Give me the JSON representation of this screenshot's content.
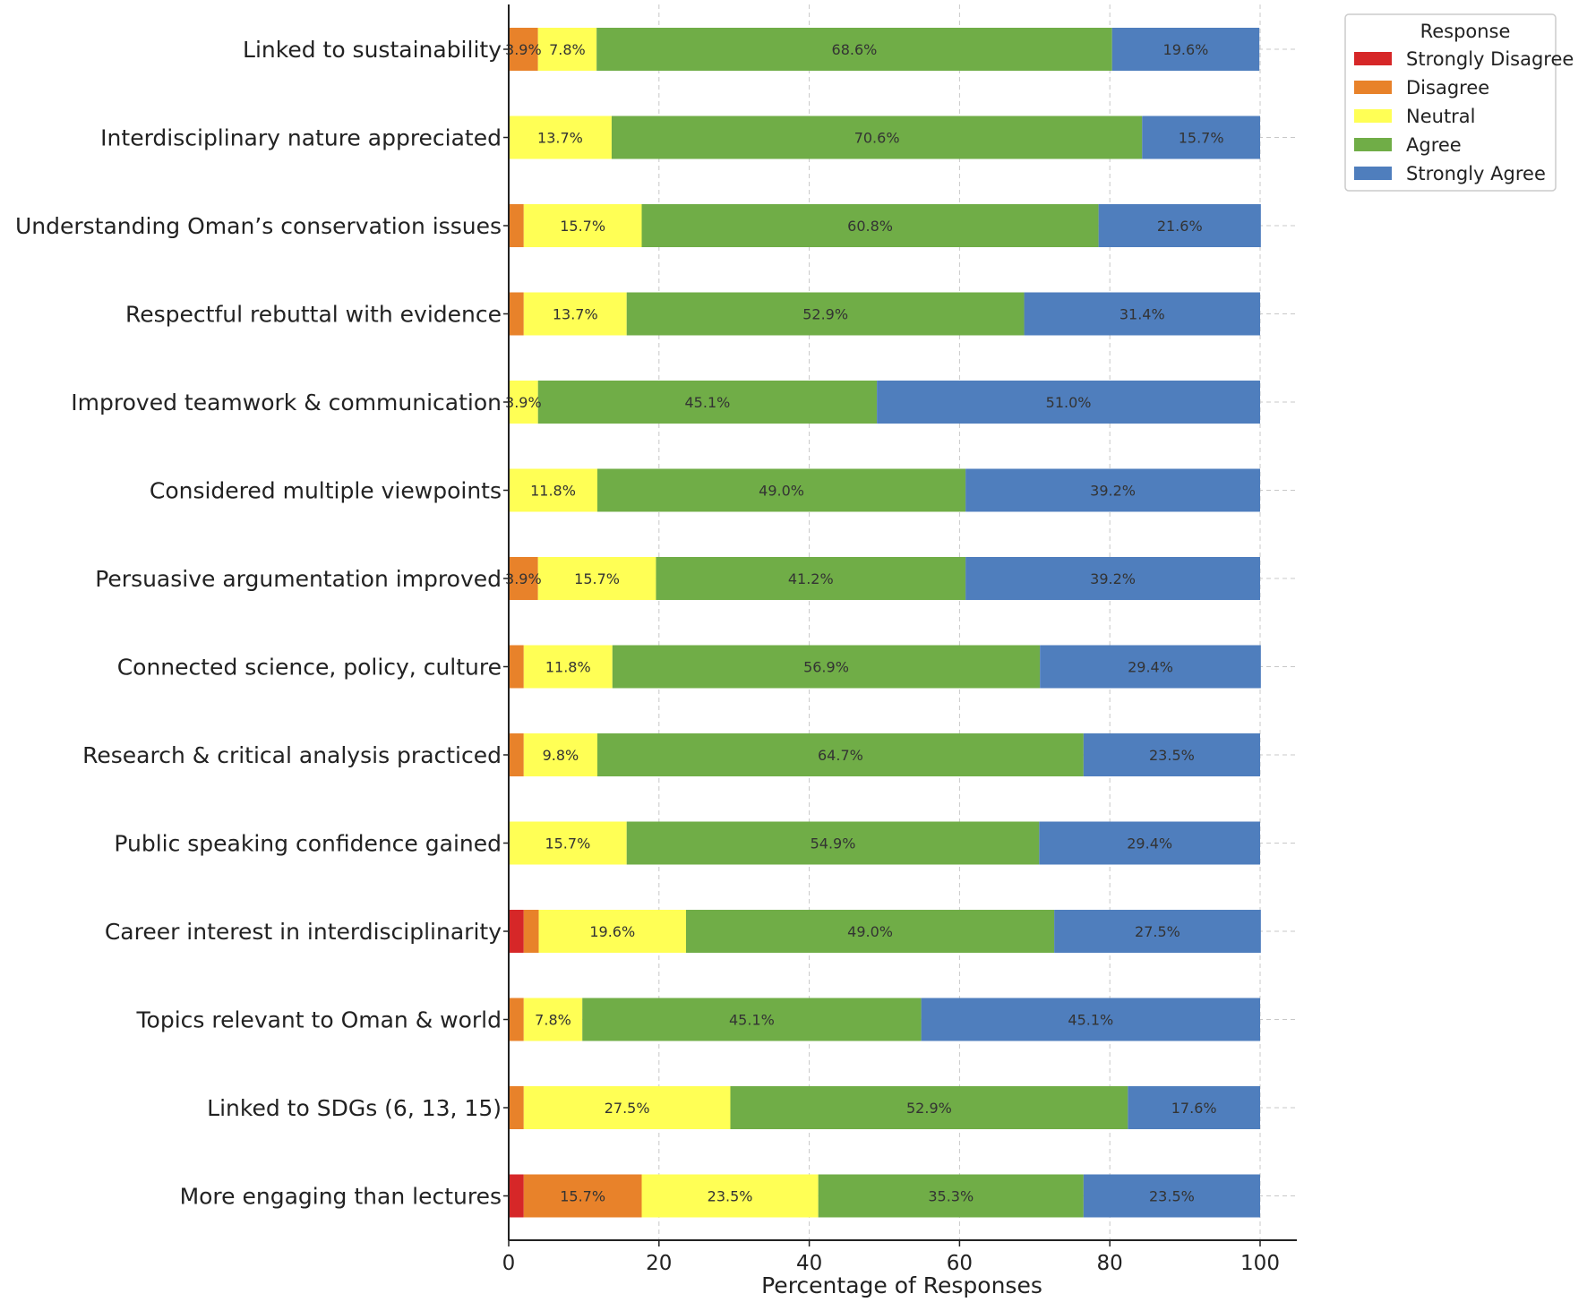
{
  "chart_data": {
    "type": "bar",
    "orientation": "horizontal",
    "stacked": true,
    "title": "",
    "xlabel": "Percentage of Responses",
    "ylabel": "",
    "xlim": [
      0,
      100
    ],
    "xticks": [
      0,
      20,
      40,
      60,
      80,
      100
    ],
    "grid": true,
    "legend": {
      "title": "Response",
      "position": "top-right outside"
    },
    "categories": [
      "Linked to sustainability",
      "Interdisciplinary nature appreciated",
      "Understanding Oman’s conservation issues",
      "Respectful rebuttal with evidence",
      "Improved teamwork & communication",
      "Considered multiple viewpoints",
      "Persuasive argumentation improved",
      "Connected science, policy, culture",
      "Research & critical analysis practiced",
      "Public speaking confidence gained",
      "Career interest in interdisciplinarity",
      "Topics relevant to Oman & world",
      "Linked to SDGs (6, 13, 15)",
      "More engaging than lectures"
    ],
    "series": [
      {
        "name": "Strongly Disagree",
        "color": "#d62728",
        "values": [
          0,
          0,
          0,
          0,
          0,
          0,
          0,
          0,
          0,
          0,
          2.0,
          0,
          0,
          2.0
        ]
      },
      {
        "name": "Disagree",
        "color": "#e8822a",
        "values": [
          3.9,
          0,
          2.0,
          2.0,
          0,
          0,
          3.9,
          2.0,
          2.0,
          0,
          2.0,
          2.0,
          2.0,
          15.7
        ]
      },
      {
        "name": "Neutral",
        "color": "#ffff55",
        "values": [
          7.8,
          13.7,
          15.7,
          13.7,
          3.9,
          11.8,
          15.7,
          11.8,
          9.8,
          15.7,
          19.6,
          7.8,
          27.5,
          23.5
        ]
      },
      {
        "name": "Agree",
        "color": "#70ad47",
        "values": [
          68.6,
          70.6,
          60.8,
          52.9,
          45.1,
          49.0,
          41.2,
          56.9,
          64.7,
          54.9,
          49.0,
          45.1,
          52.9,
          35.3
        ]
      },
      {
        "name": "Strongly Agree",
        "color": "#4f7ebd",
        "values": [
          19.6,
          15.7,
          21.6,
          31.4,
          51.0,
          39.2,
          39.2,
          29.4,
          23.5,
          29.4,
          27.5,
          45.1,
          17.6,
          23.5
        ]
      }
    ],
    "data_labels": [
      [
        "",
        "3.9%",
        "7.8%",
        "68.6%",
        "19.6%"
      ],
      [
        "",
        "",
        "13.7%",
        "70.6%",
        "15.7%"
      ],
      [
        "",
        "",
        "15.7%",
        "60.8%",
        "21.6%"
      ],
      [
        "",
        "",
        "13.7%",
        "52.9%",
        "31.4%"
      ],
      [
        "",
        "",
        "3.9%",
        "45.1%",
        "51.0%"
      ],
      [
        "",
        "",
        "11.8%",
        "49.0%",
        "39.2%"
      ],
      [
        "",
        "3.9%",
        "15.7%",
        "41.2%",
        "39.2%"
      ],
      [
        "",
        "",
        "11.8%",
        "56.9%",
        "29.4%"
      ],
      [
        "",
        "",
        "9.8%",
        "64.7%",
        "23.5%"
      ],
      [
        "",
        "",
        "15.7%",
        "54.9%",
        "29.4%"
      ],
      [
        "",
        "",
        "19.6%",
        "49.0%",
        "27.5%"
      ],
      [
        "",
        "",
        "7.8%",
        "45.1%",
        "45.1%"
      ],
      [
        "",
        "",
        "27.5%",
        "52.9%",
        "17.6%"
      ],
      [
        "",
        "15.7%",
        "23.5%",
        "35.3%",
        "23.5%"
      ]
    ]
  }
}
